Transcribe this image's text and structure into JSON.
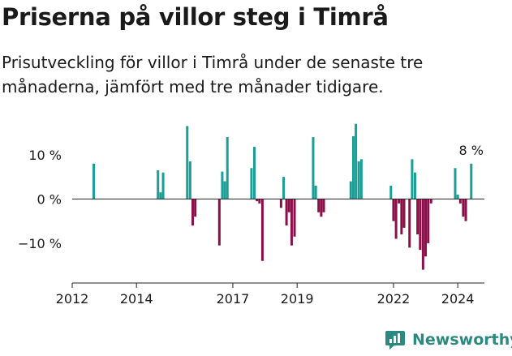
{
  "header": {
    "title": "Priserna på villor steg i Timrå",
    "subtitle": "Prisutveckling för villor i Timrå under de senaste tre månaderna, jämfört med tre månader tidigare."
  },
  "brand": {
    "name": "Newsworthy",
    "icon": "newsworthy-logo-icon",
    "color": "#2b8a80"
  },
  "chart_data": {
    "type": "bar",
    "title": "",
    "xlabel": "",
    "ylabel": "",
    "x_ticks": [
      "2012",
      "2014",
      "2017",
      "2019",
      "2022",
      "2024"
    ],
    "x_tick_values": [
      2012.0,
      2014.0,
      2017.0,
      2019.0,
      2022.0,
      2024.0
    ],
    "y_ticks": [
      "10 %",
      "0 %",
      "−10 %"
    ],
    "y_tick_values": [
      10,
      0,
      -10
    ],
    "ylim": [
      -19,
      17.5
    ],
    "xlim": [
      2012.0,
      2024.83
    ],
    "grid": false,
    "colors": {
      "positive": "#1a9e96",
      "negative": "#8b0f49"
    },
    "last_value_label": "8 %",
    "x": [
      2012.67,
      2014.67,
      2014.75,
      2014.83,
      2015.58,
      2015.67,
      2015.75,
      2015.83,
      2016.58,
      2016.67,
      2016.75,
      2016.83,
      2017.58,
      2017.67,
      2017.75,
      2017.83,
      2017.92,
      2018.5,
      2018.58,
      2018.67,
      2018.75,
      2018.83,
      2018.92,
      2019.5,
      2019.58,
      2019.67,
      2019.75,
      2019.83,
      2020.67,
      2020.75,
      2020.83,
      2020.92,
      2021.0,
      2021.92,
      2022.0,
      2022.08,
      2022.17,
      2022.25,
      2022.33,
      2022.5,
      2022.58,
      2022.67,
      2022.75,
      2022.83,
      2022.92,
      2023.0,
      2023.08,
      2023.17,
      2023.92,
      2024.0,
      2024.08,
      2024.17,
      2024.25,
      2024.42
    ],
    "values": [
      8,
      6.5,
      1.5,
      6,
      16.5,
      8.5,
      -6,
      -4,
      -10.5,
      6.2,
      4,
      14,
      7,
      11.8,
      -0.5,
      -1,
      -14,
      -2,
      5,
      -6,
      -3,
      -10.5,
      -8.5,
      14,
      3,
      -3,
      -4,
      -3,
      4,
      14.2,
      17,
      8.5,
      9,
      3,
      -5,
      -9,
      -1,
      -8,
      -6.5,
      -11,
      9,
      6,
      -8,
      -11.5,
      -16,
      -13,
      -10,
      -1,
      7,
      1,
      -1,
      -4,
      -5,
      8
    ]
  }
}
